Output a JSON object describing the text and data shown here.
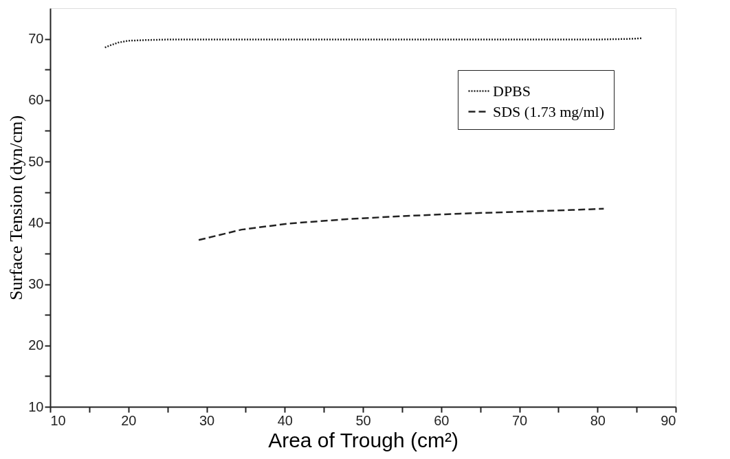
{
  "chart_data": {
    "type": "line",
    "xlabel": "Area of Trough (cm²)",
    "ylabel": "Surface Tension (dyn/cm)",
    "xlim": [
      10,
      90
    ],
    "ylim": [
      10,
      75
    ],
    "xticks": [
      10,
      {
        "value": 15,
        "label": null
      },
      20,
      {
        "value": 25,
        "label": null
      },
      30,
      {
        "value": 35,
        "label": null
      },
      40,
      {
        "value": 45,
        "label": null
      },
      50,
      {
        "value": 55,
        "label": null
      },
      60,
      {
        "value": 65,
        "label": null
      },
      70,
      {
        "value": 75,
        "label": null
      },
      80,
      {
        "value": 85,
        "label": null
      },
      90
    ],
    "yticks": [
      10,
      {
        "value": 15,
        "label": null
      },
      20,
      {
        "value": 25,
        "label": null
      },
      30,
      {
        "value": 35,
        "label": null
      },
      40,
      {
        "value": 45,
        "label": null
      },
      50,
      {
        "value": 55,
        "label": null
      },
      60,
      {
        "value": 65,
        "label": null
      },
      70
    ],
    "grid": false,
    "legend": "top right",
    "marker": "none",
    "series": [
      {
        "name": "DPBS",
        "color": "#222222",
        "line_style": "dotted",
        "x": [
          17.0,
          17.8,
          18.7,
          20.0,
          22.0,
          25.0,
          30,
          40,
          50,
          60,
          70,
          80,
          84,
          85.7
        ],
        "values": [
          68.6,
          69.0,
          69.4,
          69.7,
          69.8,
          69.9,
          69.9,
          69.9,
          69.9,
          69.9,
          69.9,
          69.9,
          70.0,
          70.1
        ]
      },
      {
        "name": "SDS (1.73 mg/ml)",
        "color": "#222222",
        "line_style": "dashed",
        "x": [
          29.0,
          34.5,
          40.6,
          47.9,
          55.1,
          62.4,
          69.6,
          76.8,
          80.8
        ],
        "values": [
          37.2,
          38.9,
          39.9,
          40.6,
          41.1,
          41.5,
          41.8,
          42.1,
          42.3
        ]
      }
    ]
  }
}
